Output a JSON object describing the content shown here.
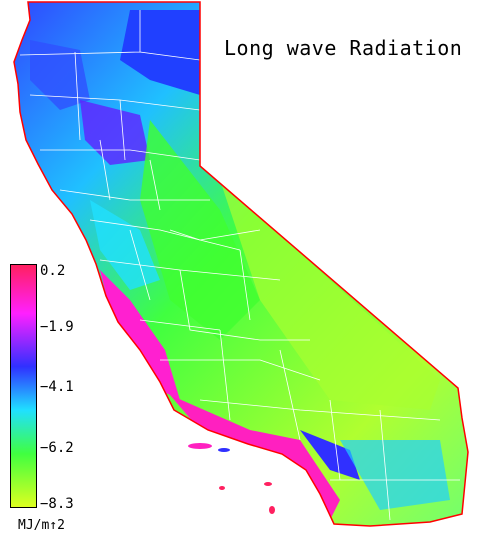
{
  "map": {
    "title": "Long wave Radiation",
    "region": "California"
  },
  "legend": {
    "ticks": [
      "0.2",
      "−1.9",
      "−4.1",
      "−6.2",
      "−8.3"
    ],
    "unit": "MJ/m↑2",
    "colors": [
      "#ff2060",
      "#ff20ff",
      "#3030ff",
      "#20e0ff",
      "#40ff40",
      "#ddff20"
    ]
  },
  "colors": {
    "background": "#ffffff",
    "county_lines": "#ffffff",
    "coast_outline": "#ff0000"
  }
}
